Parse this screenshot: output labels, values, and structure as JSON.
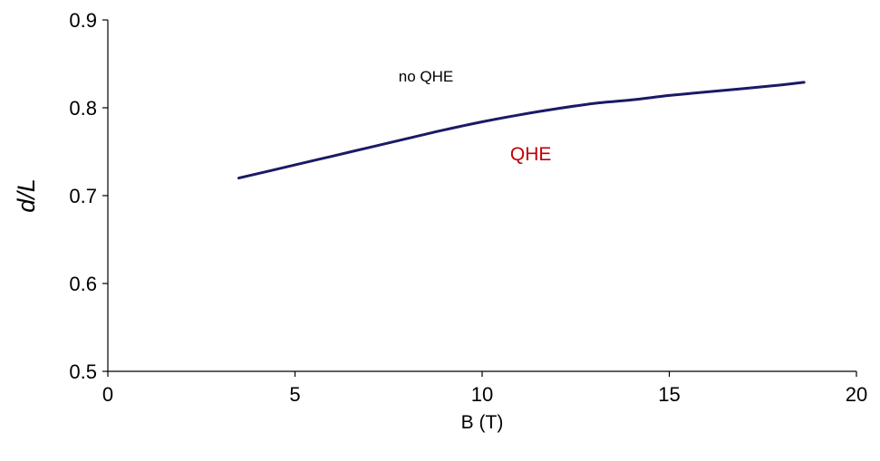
{
  "chart_data": {
    "type": "line",
    "xlabel": "B (T)",
    "ylabel": "d/L",
    "xlim": [
      0,
      20
    ],
    "ylim": [
      0.5,
      0.9
    ],
    "x_ticks": [
      "0",
      "5",
      "10",
      "15",
      "20"
    ],
    "y_ticks": [
      "0.5",
      "0.6",
      "0.7",
      "0.8",
      "0.9"
    ],
    "grid": false,
    "legend": "none",
    "series": [
      {
        "color": "#1a1a66",
        "x": [
          3.5,
          5,
          6,
          7,
          8,
          9,
          10,
          11,
          12,
          13,
          14,
          15,
          16,
          17,
          18,
          18.6
        ],
        "y": [
          0.72,
          0.735,
          0.745,
          0.755,
          0.765,
          0.775,
          0.784,
          0.792,
          0.799,
          0.805,
          0.809,
          0.814,
          0.818,
          0.822,
          0.826,
          0.829
        ]
      }
    ],
    "annotations": [
      {
        "text": "no QHE",
        "x": 8.5,
        "y": 0.83,
        "color": "#000000"
      },
      {
        "text": "QHE",
        "x": 11.3,
        "y": 0.74,
        "color": "#c00000"
      }
    ]
  }
}
